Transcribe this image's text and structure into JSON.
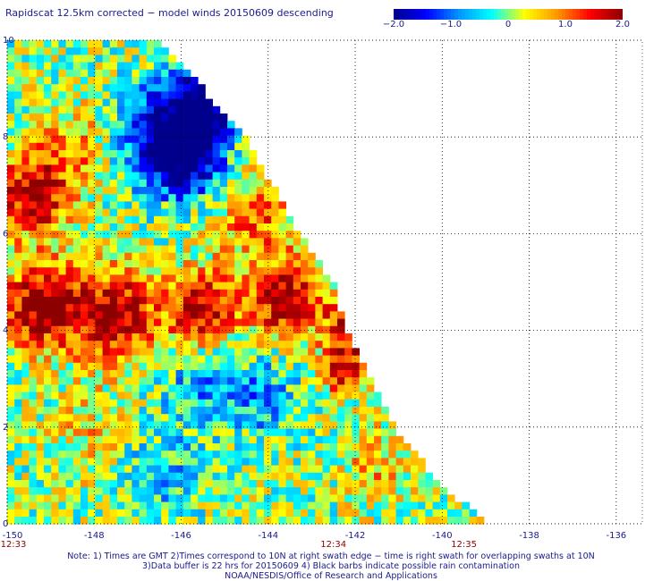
{
  "title": "Rapidscat 12.5km corrected − model winds 20150609 descending",
  "colorbar": {
    "min": -2.0,
    "max": 2.0,
    "tick_labels": [
      "−2.0",
      "−1.0",
      "0",
      "1.0",
      "2.0"
    ],
    "tick_values": [
      -2.0,
      -1.0,
      0.0,
      1.0,
      2.0
    ],
    "colors": [
      "#00008c",
      "#0000ff",
      "#0096ff",
      "#00ffff",
      "#ffff00",
      "#ff9600",
      "#ff0000",
      "#8c0000"
    ]
  },
  "map": {
    "lon_range": [
      -150,
      -135.4
    ],
    "lat_range": [
      0,
      10
    ],
    "lon_tick_labels": [
      "-150",
      "-148",
      "-146",
      "-144",
      "-142",
      "-140",
      "-138",
      "-136"
    ],
    "lon_tick_values": [
      -150,
      -148,
      -146,
      -144,
      -142,
      -140,
      -138,
      -136
    ],
    "lat_tick_labels": [
      "0",
      "2",
      "4",
      "6",
      "8",
      "10"
    ],
    "lat_tick_values": [
      0,
      2,
      4,
      6,
      8,
      10
    ],
    "gridlines": true,
    "swath_edge": [
      [
        -146.5,
        10
      ],
      [
        -144.5,
        8
      ],
      [
        -143.3,
        6
      ],
      [
        -142.5,
        5
      ],
      [
        -142.2,
        4
      ],
      [
        -141.1,
        2
      ],
      [
        -140.2,
        1
      ],
      [
        -139,
        0
      ]
    ],
    "time_labels": [
      {
        "text": "12:33",
        "lon": -150
      },
      {
        "text": "12:34",
        "lon": -142.5
      },
      {
        "text": "12:35",
        "lon": -139.5
      }
    ],
    "features": [
      {
        "lon": -146.4,
        "lat": 8.0,
        "value": -2.0,
        "radius": 1.0
      },
      {
        "lon": -145.4,
        "lat": 8.8,
        "value": -1.9,
        "radius": 0.8
      },
      {
        "lon": -145.8,
        "lat": 7.6,
        "value": -1.7,
        "radius": 0.8
      },
      {
        "lon": -149.4,
        "lat": 6.8,
        "value": 1.9,
        "radius": 0.8
      },
      {
        "lon": -149.2,
        "lat": 4.5,
        "value": 2.0,
        "radius": 0.9
      },
      {
        "lon": -147.5,
        "lat": 4.3,
        "value": 2.0,
        "radius": 0.9
      },
      {
        "lon": -145.5,
        "lat": 4.4,
        "value": 1.9,
        "radius": 0.8
      },
      {
        "lon": -143.6,
        "lat": 4.6,
        "value": 1.8,
        "radius": 0.8
      },
      {
        "lon": -142.0,
        "lat": 4.2,
        "value": 1.9,
        "radius": 0.6
      },
      {
        "lon": -142.3,
        "lat": 3.2,
        "value": 1.7,
        "radius": 0.5
      },
      {
        "lon": -145.5,
        "lat": 3.0,
        "value": -0.9,
        "radius": 1.0
      },
      {
        "lon": -144.0,
        "lat": 2.6,
        "value": -0.8,
        "radius": 0.8
      },
      {
        "lon": -146.6,
        "lat": 1.0,
        "value": -0.8,
        "radius": 0.9
      },
      {
        "lon": -144.3,
        "lat": 6.3,
        "value": 1.0,
        "radius": 0.9
      },
      {
        "lon": -148.4,
        "lat": 7.8,
        "value": 0.7,
        "radius": 0.9
      },
      {
        "lon": -148.0,
        "lat": 1.8,
        "value": 0.5,
        "radius": 1.0
      },
      {
        "lon": -141.5,
        "lat": 1.2,
        "value": 0.6,
        "radius": 0.8
      }
    ]
  },
  "notes": [
    "Note: 1) Times are GMT 2)Times correspond to 10N at right swath edge − time is right swath for overlapping swaths at 10N",
    "3)Data buffer is 22 hrs for 20150609 4) Black barbs indicate possible rain contamination",
    "NOAA/NESDIS/Office of Research and Applications"
  ]
}
